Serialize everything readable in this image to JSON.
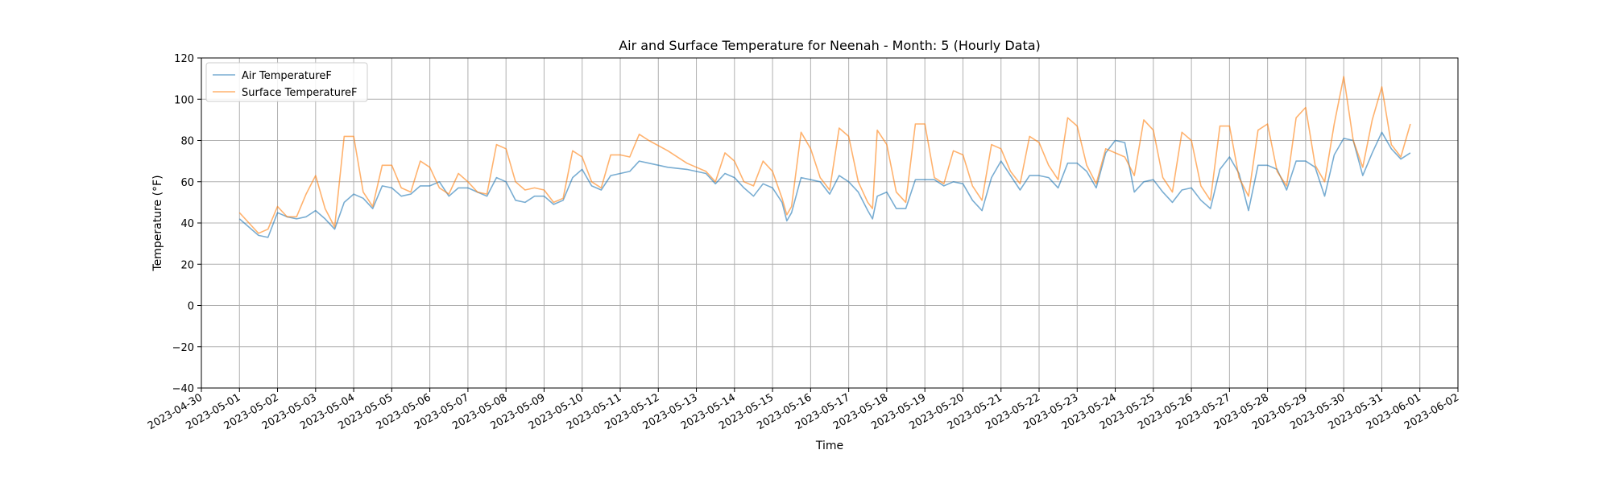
{
  "chart_data": {
    "type": "line",
    "title": "Air and Surface Temperature for Neenah - Month: 5 (Hourly Data)",
    "xlabel": "Time",
    "ylabel": "Temperature (°F)",
    "ylim": [
      -40,
      120
    ],
    "xlim": [
      "2023-04-30",
      "2023-06-02"
    ],
    "yticks": [
      -40,
      -20,
      0,
      20,
      40,
      60,
      80,
      100,
      120
    ],
    "xticks": [
      "2023-04-30",
      "2023-05-01",
      "2023-05-02",
      "2023-05-03",
      "2023-05-04",
      "2023-05-05",
      "2023-05-06",
      "2023-05-07",
      "2023-05-08",
      "2023-05-09",
      "2023-05-10",
      "2023-05-11",
      "2023-05-12",
      "2023-05-13",
      "2023-05-14",
      "2023-05-15",
      "2023-05-16",
      "2023-05-17",
      "2023-05-18",
      "2023-05-19",
      "2023-05-20",
      "2023-05-21",
      "2023-05-22",
      "2023-05-23",
      "2023-05-24",
      "2023-05-25",
      "2023-05-26",
      "2023-05-27",
      "2023-05-28",
      "2023-05-29",
      "2023-05-30",
      "2023-05-31",
      "2023-06-01",
      "2023-06-02"
    ],
    "grid": true,
    "legend_position": "top-left",
    "series": [
      {
        "name": "Air TemperatureF",
        "color": "#1f77b4",
        "points": [
          [
            "2023-05-01 00:00",
            42
          ],
          [
            "2023-05-01 06:00",
            38
          ],
          [
            "2023-05-01 12:00",
            34
          ],
          [
            "2023-05-01 18:00",
            33
          ],
          [
            "2023-05-02 00:00",
            45
          ],
          [
            "2023-05-02 06:00",
            43
          ],
          [
            "2023-05-02 12:00",
            42
          ],
          [
            "2023-05-02 18:00",
            43
          ],
          [
            "2023-05-03 00:00",
            46
          ],
          [
            "2023-05-03 06:00",
            42
          ],
          [
            "2023-05-03 12:00",
            37
          ],
          [
            "2023-05-03 18:00",
            50
          ],
          [
            "2023-05-04 00:00",
            54
          ],
          [
            "2023-05-04 06:00",
            52
          ],
          [
            "2023-05-04 12:00",
            47
          ],
          [
            "2023-05-04 18:00",
            58
          ],
          [
            "2023-05-05 00:00",
            57
          ],
          [
            "2023-05-05 06:00",
            53
          ],
          [
            "2023-05-05 12:00",
            54
          ],
          [
            "2023-05-05 18:00",
            58
          ],
          [
            "2023-05-06 00:00",
            58
          ],
          [
            "2023-05-06 06:00",
            60
          ],
          [
            "2023-05-06 12:00",
            53
          ],
          [
            "2023-05-06 18:00",
            57
          ],
          [
            "2023-05-07 00:00",
            57
          ],
          [
            "2023-05-07 06:00",
            55
          ],
          [
            "2023-05-07 12:00",
            53
          ],
          [
            "2023-05-07 18:00",
            62
          ],
          [
            "2023-05-08 00:00",
            60
          ],
          [
            "2023-05-08 06:00",
            51
          ],
          [
            "2023-05-08 12:00",
            50
          ],
          [
            "2023-05-08 18:00",
            53
          ],
          [
            "2023-05-09 00:00",
            53
          ],
          [
            "2023-05-09 06:00",
            49
          ],
          [
            "2023-05-09 12:00",
            51
          ],
          [
            "2023-05-09 18:00",
            62
          ],
          [
            "2023-05-10 00:00",
            66
          ],
          [
            "2023-05-10 06:00",
            58
          ],
          [
            "2023-05-10 12:00",
            56
          ],
          [
            "2023-05-10 18:00",
            63
          ],
          [
            "2023-05-11 00:00",
            64
          ],
          [
            "2023-05-11 06:00",
            65
          ],
          [
            "2023-05-11 12:00",
            70
          ],
          [
            "2023-05-11 18:00",
            69
          ],
          [
            "2023-05-12 06:00",
            67
          ],
          [
            "2023-05-12 18:00",
            66
          ],
          [
            "2023-05-13 06:00",
            64
          ],
          [
            "2023-05-13 12:00",
            59
          ],
          [
            "2023-05-13 18:00",
            64
          ],
          [
            "2023-05-14 00:00",
            62
          ],
          [
            "2023-05-14 06:00",
            57
          ],
          [
            "2023-05-14 12:00",
            53
          ],
          [
            "2023-05-14 18:00",
            59
          ],
          [
            "2023-05-15 00:00",
            57
          ],
          [
            "2023-05-15 06:00",
            50
          ],
          [
            "2023-05-15 09:00",
            41
          ],
          [
            "2023-05-15 12:00",
            45
          ],
          [
            "2023-05-15 18:00",
            62
          ],
          [
            "2023-05-16 00:00",
            61
          ],
          [
            "2023-05-16 06:00",
            60
          ],
          [
            "2023-05-16 12:00",
            54
          ],
          [
            "2023-05-16 18:00",
            63
          ],
          [
            "2023-05-17 00:00",
            60
          ],
          [
            "2023-05-17 06:00",
            55
          ],
          [
            "2023-05-17 12:00",
            46
          ],
          [
            "2023-05-17 15:00",
            42
          ],
          [
            "2023-05-17 18:00",
            53
          ],
          [
            "2023-05-18 00:00",
            55
          ],
          [
            "2023-05-18 06:00",
            47
          ],
          [
            "2023-05-18 12:00",
            47
          ],
          [
            "2023-05-18 18:00",
            61
          ],
          [
            "2023-05-19 00:00",
            61
          ],
          [
            "2023-05-19 06:00",
            61
          ],
          [
            "2023-05-19 12:00",
            58
          ],
          [
            "2023-05-19 18:00",
            60
          ],
          [
            "2023-05-20 00:00",
            59
          ],
          [
            "2023-05-20 06:00",
            51
          ],
          [
            "2023-05-20 12:00",
            46
          ],
          [
            "2023-05-20 18:00",
            62
          ],
          [
            "2023-05-21 00:00",
            70
          ],
          [
            "2023-05-21 06:00",
            63
          ],
          [
            "2023-05-21 12:00",
            56
          ],
          [
            "2023-05-21 18:00",
            63
          ],
          [
            "2023-05-22 00:00",
            63
          ],
          [
            "2023-05-22 06:00",
            62
          ],
          [
            "2023-05-22 12:00",
            57
          ],
          [
            "2023-05-22 18:00",
            69
          ],
          [
            "2023-05-23 00:00",
            69
          ],
          [
            "2023-05-23 06:00",
            65
          ],
          [
            "2023-05-23 12:00",
            57
          ],
          [
            "2023-05-23 18:00",
            74
          ],
          [
            "2023-05-24 00:00",
            80
          ],
          [
            "2023-05-24 06:00",
            79
          ],
          [
            "2023-05-24 12:00",
            55
          ],
          [
            "2023-05-24 18:00",
            60
          ],
          [
            "2023-05-25 00:00",
            61
          ],
          [
            "2023-05-25 06:00",
            55
          ],
          [
            "2023-05-25 12:00",
            50
          ],
          [
            "2023-05-25 18:00",
            56
          ],
          [
            "2023-05-26 00:00",
            57
          ],
          [
            "2023-05-26 06:00",
            51
          ],
          [
            "2023-05-26 12:00",
            47
          ],
          [
            "2023-05-26 18:00",
            66
          ],
          [
            "2023-05-27 00:00",
            72
          ],
          [
            "2023-05-27 06:00",
            64
          ],
          [
            "2023-05-27 12:00",
            46
          ],
          [
            "2023-05-27 18:00",
            68
          ],
          [
            "2023-05-28 00:00",
            68
          ],
          [
            "2023-05-28 06:00",
            66
          ],
          [
            "2023-05-28 12:00",
            56
          ],
          [
            "2023-05-28 18:00",
            70
          ],
          [
            "2023-05-29 00:00",
            70
          ],
          [
            "2023-05-29 06:00",
            67
          ],
          [
            "2023-05-29 12:00",
            53
          ],
          [
            "2023-05-29 18:00",
            73
          ],
          [
            "2023-05-30 00:00",
            81
          ],
          [
            "2023-05-30 06:00",
            80
          ],
          [
            "2023-05-30 12:00",
            63
          ],
          [
            "2023-05-30 18:00",
            74
          ],
          [
            "2023-05-31 00:00",
            84
          ],
          [
            "2023-05-31 06:00",
            76
          ],
          [
            "2023-05-31 12:00",
            71
          ],
          [
            "2023-05-31 18:00",
            74
          ]
        ]
      },
      {
        "name": "Surface TemperatureF",
        "color": "#ff7f0e",
        "points": [
          [
            "2023-05-01 00:00",
            45
          ],
          [
            "2023-05-01 06:00",
            40
          ],
          [
            "2023-05-01 12:00",
            35
          ],
          [
            "2023-05-01 18:00",
            37
          ],
          [
            "2023-05-02 00:00",
            48
          ],
          [
            "2023-05-02 06:00",
            43
          ],
          [
            "2023-05-02 12:00",
            43
          ],
          [
            "2023-05-02 18:00",
            54
          ],
          [
            "2023-05-03 00:00",
            63
          ],
          [
            "2023-05-03 06:00",
            47
          ],
          [
            "2023-05-03 12:00",
            38
          ],
          [
            "2023-05-03 18:00",
            82
          ],
          [
            "2023-05-04 00:00",
            82
          ],
          [
            "2023-05-04 06:00",
            55
          ],
          [
            "2023-05-04 12:00",
            48
          ],
          [
            "2023-05-04 18:00",
            68
          ],
          [
            "2023-05-05 00:00",
            68
          ],
          [
            "2023-05-05 06:00",
            57
          ],
          [
            "2023-05-05 12:00",
            55
          ],
          [
            "2023-05-05 18:00",
            70
          ],
          [
            "2023-05-06 00:00",
            67
          ],
          [
            "2023-05-06 06:00",
            57
          ],
          [
            "2023-05-06 12:00",
            54
          ],
          [
            "2023-05-06 18:00",
            64
          ],
          [
            "2023-05-07 00:00",
            60
          ],
          [
            "2023-05-07 06:00",
            55
          ],
          [
            "2023-05-07 12:00",
            54
          ],
          [
            "2023-05-07 18:00",
            78
          ],
          [
            "2023-05-08 00:00",
            76
          ],
          [
            "2023-05-08 06:00",
            60
          ],
          [
            "2023-05-08 12:00",
            56
          ],
          [
            "2023-05-08 18:00",
            57
          ],
          [
            "2023-05-09 00:00",
            56
          ],
          [
            "2023-05-09 06:00",
            50
          ],
          [
            "2023-05-09 12:00",
            52
          ],
          [
            "2023-05-09 18:00",
            75
          ],
          [
            "2023-05-10 00:00",
            72
          ],
          [
            "2023-05-10 06:00",
            60
          ],
          [
            "2023-05-10 12:00",
            57
          ],
          [
            "2023-05-10 18:00",
            73
          ],
          [
            "2023-05-11 00:00",
            73
          ],
          [
            "2023-05-11 06:00",
            72
          ],
          [
            "2023-05-11 12:00",
            83
          ],
          [
            "2023-05-11 18:00",
            80
          ],
          [
            "2023-05-12 06:00",
            75
          ],
          [
            "2023-05-12 18:00",
            69
          ],
          [
            "2023-05-13 06:00",
            65
          ],
          [
            "2023-05-13 12:00",
            60
          ],
          [
            "2023-05-13 18:00",
            74
          ],
          [
            "2023-05-14 00:00",
            70
          ],
          [
            "2023-05-14 06:00",
            60
          ],
          [
            "2023-05-14 12:00",
            58
          ],
          [
            "2023-05-14 18:00",
            70
          ],
          [
            "2023-05-15 00:00",
            65
          ],
          [
            "2023-05-15 06:00",
            52
          ],
          [
            "2023-05-15 09:00",
            44
          ],
          [
            "2023-05-15 12:00",
            48
          ],
          [
            "2023-05-15 18:00",
            84
          ],
          [
            "2023-05-16 00:00",
            76
          ],
          [
            "2023-05-16 06:00",
            62
          ],
          [
            "2023-05-16 12:00",
            56
          ],
          [
            "2023-05-16 18:00",
            86
          ],
          [
            "2023-05-17 00:00",
            82
          ],
          [
            "2023-05-17 06:00",
            60
          ],
          [
            "2023-05-17 12:00",
            50
          ],
          [
            "2023-05-17 15:00",
            47
          ],
          [
            "2023-05-17 18:00",
            85
          ],
          [
            "2023-05-18 00:00",
            78
          ],
          [
            "2023-05-18 06:00",
            55
          ],
          [
            "2023-05-18 12:00",
            50
          ],
          [
            "2023-05-18 18:00",
            88
          ],
          [
            "2023-05-19 00:00",
            88
          ],
          [
            "2023-05-19 06:00",
            62
          ],
          [
            "2023-05-19 12:00",
            59
          ],
          [
            "2023-05-19 18:00",
            75
          ],
          [
            "2023-05-20 00:00",
            73
          ],
          [
            "2023-05-20 06:00",
            58
          ],
          [
            "2023-05-20 12:00",
            51
          ],
          [
            "2023-05-20 18:00",
            78
          ],
          [
            "2023-05-21 00:00",
            76
          ],
          [
            "2023-05-21 06:00",
            65
          ],
          [
            "2023-05-21 12:00",
            59
          ],
          [
            "2023-05-21 18:00",
            82
          ],
          [
            "2023-05-22 00:00",
            79
          ],
          [
            "2023-05-22 06:00",
            68
          ],
          [
            "2023-05-22 12:00",
            61
          ],
          [
            "2023-05-22 18:00",
            91
          ],
          [
            "2023-05-23 00:00",
            87
          ],
          [
            "2023-05-23 06:00",
            68
          ],
          [
            "2023-05-23 12:00",
            59
          ],
          [
            "2023-05-23 18:00",
            76
          ],
          [
            "2023-05-24 00:00",
            74
          ],
          [
            "2023-05-24 06:00",
            72
          ],
          [
            "2023-05-24 12:00",
            63
          ],
          [
            "2023-05-24 18:00",
            90
          ],
          [
            "2023-05-25 00:00",
            85
          ],
          [
            "2023-05-25 06:00",
            62
          ],
          [
            "2023-05-25 12:00",
            55
          ],
          [
            "2023-05-25 18:00",
            84
          ],
          [
            "2023-05-26 00:00",
            80
          ],
          [
            "2023-05-26 06:00",
            58
          ],
          [
            "2023-05-26 12:00",
            51
          ],
          [
            "2023-05-26 18:00",
            87
          ],
          [
            "2023-05-27 00:00",
            87
          ],
          [
            "2023-05-27 06:00",
            62
          ],
          [
            "2023-05-27 12:00",
            53
          ],
          [
            "2023-05-27 18:00",
            85
          ],
          [
            "2023-05-28 00:00",
            88
          ],
          [
            "2023-05-28 06:00",
            65
          ],
          [
            "2023-05-28 12:00",
            58
          ],
          [
            "2023-05-28 18:00",
            91
          ],
          [
            "2023-05-29 00:00",
            96
          ],
          [
            "2023-05-29 06:00",
            68
          ],
          [
            "2023-05-29 12:00",
            60
          ],
          [
            "2023-05-29 18:00",
            88
          ],
          [
            "2023-05-30 00:00",
            111
          ],
          [
            "2023-05-30 06:00",
            80
          ],
          [
            "2023-05-30 12:00",
            67
          ],
          [
            "2023-05-30 18:00",
            90
          ],
          [
            "2023-05-31 00:00",
            106
          ],
          [
            "2023-05-31 06:00",
            78
          ],
          [
            "2023-05-31 12:00",
            72
          ],
          [
            "2023-05-31 18:00",
            88
          ]
        ]
      }
    ]
  }
}
